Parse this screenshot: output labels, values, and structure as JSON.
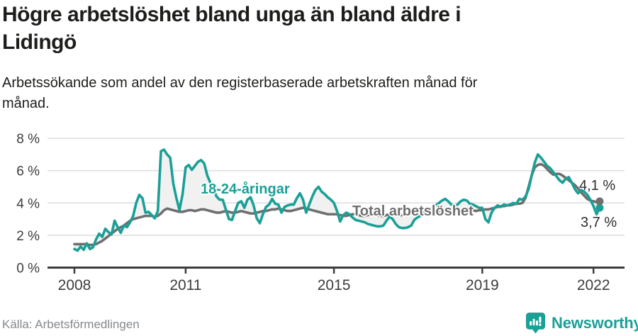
{
  "header": {
    "title_line1": "Högre arbetslöshet bland unga än bland äldre i",
    "title_line2": "Lidingö",
    "subtitle_line1": "Arbetssökande som andel av den registerbaserade arbetskraften månad för",
    "subtitle_line2": "månad."
  },
  "footer": {
    "source": "Källa: Arbetsförmedlingen",
    "brand": "Newsworthy"
  },
  "colors": {
    "youth": "#1aa096",
    "total": "#6f6f6f",
    "band": "#f1f1f1",
    "grid": "#dcdcdc",
    "axis": "#3d3d3d",
    "tick_text": "#3d3d3d",
    "brand": "#1aa096"
  },
  "chart_data": {
    "type": "line",
    "title": "Högre arbetslöshet bland unga än bland äldre i Lidingö",
    "subtitle": "Arbetssökande som andel av den registerbaserade arbetskraften månad för månad.",
    "unit": "%",
    "x_interval": "month",
    "x_start": "2008-01",
    "x_end": "2022-03",
    "ylim": [
      0,
      8
    ],
    "grid": "horizontal",
    "x_ticks": [
      {
        "label": "2008",
        "year": 2008
      },
      {
        "label": "2011",
        "year": 2011
      },
      {
        "label": "2015",
        "year": 2015
      },
      {
        "label": "2019",
        "year": 2019
      },
      {
        "label": "2022",
        "year": 2022
      }
    ],
    "y_ticks": [
      {
        "label": "0 %",
        "value": 0
      },
      {
        "label": "2 %",
        "value": 2
      },
      {
        "label": "4 %",
        "value": 4
      },
      {
        "label": "6 %",
        "value": 6
      },
      {
        "label": "8 %",
        "value": 8
      }
    ],
    "series": [
      {
        "id": "youth",
        "name": "18-24-åringar",
        "color": "#1aa096",
        "end_label": "3,7 %",
        "end_value": 3.7,
        "values": [
          1.15,
          1.05,
          1.3,
          1.1,
          1.5,
          1.15,
          1.25,
          1.75,
          2.1,
          1.9,
          2.4,
          2.2,
          2.05,
          2.9,
          2.5,
          2.15,
          2.6,
          2.5,
          2.8,
          3.2,
          4.0,
          4.5,
          4.3,
          3.4,
          3.45,
          3.25,
          3.05,
          3.5,
          7.2,
          7.3,
          7.0,
          6.8,
          5.2,
          4.3,
          3.55,
          4.55,
          6.2,
          6.35,
          6.05,
          6.3,
          6.55,
          6.65,
          6.45,
          5.7,
          5.25,
          4.85,
          4.4,
          4.2,
          4.2,
          3.6,
          3.0,
          2.95,
          3.5,
          4.0,
          4.1,
          3.7,
          4.2,
          4.35,
          3.85,
          3.05,
          2.75,
          3.3,
          3.75,
          3.9,
          4.25,
          3.95,
          3.9,
          3.4,
          3.75,
          3.85,
          3.9,
          3.9,
          4.3,
          4.6,
          4.2,
          3.4,
          3.9,
          4.4,
          4.8,
          5.0,
          4.7,
          4.55,
          4.35,
          4.2,
          4.0,
          3.5,
          2.85,
          3.25,
          3.4,
          3.3,
          3.1,
          2.95,
          2.9,
          2.85,
          2.8,
          2.7,
          2.65,
          2.6,
          2.55,
          2.55,
          2.6,
          2.9,
          3.15,
          3.0,
          2.7,
          2.5,
          2.45,
          2.45,
          2.5,
          2.6,
          2.95,
          3.1,
          3.2,
          3.35,
          3.5,
          3.6,
          3.7,
          3.85,
          4.0,
          4.15,
          4.25,
          4.1,
          3.9,
          3.8,
          3.9,
          4.1,
          4.2,
          4.15,
          3.95,
          3.9,
          3.8,
          3.7,
          3.7,
          3.0,
          2.8,
          3.4,
          3.7,
          3.85,
          3.75,
          3.9,
          3.85,
          3.9,
          4.0,
          3.95,
          4.25,
          4.2,
          4.4,
          4.85,
          5.7,
          6.5,
          7.0,
          6.8,
          6.55,
          6.3,
          6.15,
          5.9,
          5.65,
          5.4,
          5.25,
          5.5,
          5.6,
          5.25,
          4.85,
          4.6,
          4.8,
          4.7,
          4.5,
          4.2,
          3.8,
          3.3,
          3.7
        ]
      },
      {
        "id": "total",
        "name": "Total arbetslöshet",
        "color": "#6f6f6f",
        "end_label": "4,1 %",
        "end_value": 4.1,
        "values": [
          1.45,
          1.45,
          1.45,
          1.45,
          1.45,
          1.4,
          1.4,
          1.45,
          1.55,
          1.65,
          1.8,
          1.95,
          2.1,
          2.25,
          2.4,
          2.5,
          2.6,
          2.75,
          2.9,
          3.0,
          3.05,
          3.1,
          3.15,
          3.2,
          3.2,
          3.2,
          3.15,
          3.2,
          3.35,
          3.55,
          3.65,
          3.6,
          3.55,
          3.5,
          3.45,
          3.45,
          3.5,
          3.55,
          3.55,
          3.5,
          3.55,
          3.6,
          3.6,
          3.55,
          3.5,
          3.45,
          3.4,
          3.4,
          3.45,
          3.5,
          3.45,
          3.4,
          3.4,
          3.45,
          3.5,
          3.45,
          3.4,
          3.35,
          3.35,
          3.4,
          3.45,
          3.5,
          3.5,
          3.55,
          3.6,
          3.6,
          3.65,
          3.6,
          3.55,
          3.5,
          3.5,
          3.55,
          3.6,
          3.65,
          3.7,
          3.65,
          3.6,
          3.55,
          3.5,
          3.45,
          3.4,
          3.35,
          3.3,
          3.3,
          3.3,
          3.3,
          3.25,
          3.2,
          3.2,
          3.25,
          3.3,
          3.3,
          3.25,
          3.2,
          3.2,
          3.25,
          3.3,
          3.3,
          3.25,
          3.2,
          3.2,
          3.25,
          3.3,
          3.35,
          3.3,
          3.25,
          3.25,
          3.3,
          3.3,
          3.35,
          3.35,
          3.3,
          3.35,
          3.4,
          3.45,
          3.5,
          3.45,
          3.4,
          3.45,
          3.5,
          3.5,
          3.55,
          3.6,
          3.55,
          3.5,
          3.55,
          3.6,
          3.65,
          3.6,
          3.55,
          3.5,
          3.55,
          3.55,
          3.6,
          3.6,
          3.65,
          3.7,
          3.75,
          3.8,
          3.8,
          3.85,
          3.85,
          3.9,
          3.95,
          3.95,
          4.0,
          4.3,
          5.0,
          5.7,
          6.2,
          6.35,
          6.4,
          6.3,
          6.1,
          5.9,
          5.75,
          5.8,
          5.8,
          5.7,
          5.55,
          5.4,
          5.25,
          5.1,
          4.9,
          4.65,
          4.45,
          4.25,
          4.15,
          4.1,
          4.05,
          4.1
        ]
      }
    ]
  }
}
